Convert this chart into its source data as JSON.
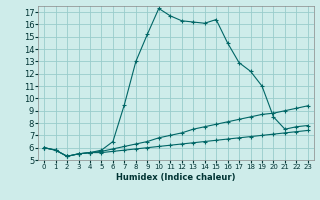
{
  "xlabel": "Humidex (Indice chaleur)",
  "ylabel": "",
  "bg_color": "#ceecea",
  "grid_color": "#99cccc",
  "line_color": "#006666",
  "xlim": [
    -0.5,
    23.5
  ],
  "ylim": [
    5,
    17.5
  ],
  "yticks": [
    5,
    6,
    7,
    8,
    9,
    10,
    11,
    12,
    13,
    14,
    15,
    16,
    17
  ],
  "xticks": [
    0,
    1,
    2,
    3,
    4,
    5,
    6,
    7,
    8,
    9,
    10,
    11,
    12,
    13,
    14,
    15,
    16,
    17,
    18,
    19,
    20,
    21,
    22,
    23
  ],
  "series": [
    {
      "x": [
        0,
        1,
        2,
        3,
        4,
        5,
        6,
        7,
        8,
        9,
        10,
        11,
        12,
        13,
        14,
        15,
        16,
        17,
        18,
        19,
        20,
        21,
        22,
        23
      ],
      "y": [
        6.0,
        5.8,
        5.3,
        5.5,
        5.6,
        5.6,
        5.7,
        5.8,
        5.9,
        6.0,
        6.1,
        6.2,
        6.3,
        6.4,
        6.5,
        6.6,
        6.7,
        6.8,
        6.9,
        7.0,
        7.1,
        7.2,
        7.3,
        7.4
      ]
    },
    {
      "x": [
        0,
        1,
        2,
        3,
        4,
        5,
        6,
        7,
        8,
        9,
        10,
        11,
        12,
        13,
        14,
        15,
        16,
        17,
        18,
        19,
        20,
        21,
        22,
        23
      ],
      "y": [
        6.0,
        5.8,
        5.3,
        5.5,
        5.6,
        5.7,
        5.9,
        6.1,
        6.3,
        6.5,
        6.8,
        7.0,
        7.2,
        7.5,
        7.7,
        7.9,
        8.1,
        8.3,
        8.5,
        8.7,
        8.8,
        9.0,
        9.2,
        9.4
      ]
    },
    {
      "x": [
        0,
        1,
        2,
        3,
        4,
        5,
        6,
        7,
        8,
        9,
        10,
        11,
        12,
        13,
        14,
        15,
        16,
        17,
        18,
        19,
        20,
        21,
        22,
        23
      ],
      "y": [
        6.0,
        5.8,
        5.3,
        5.5,
        5.6,
        5.8,
        6.5,
        9.5,
        13.0,
        15.2,
        17.3,
        16.7,
        16.3,
        16.2,
        16.1,
        16.4,
        14.5,
        12.9,
        12.2,
        11.0,
        8.5,
        7.5,
        7.7,
        7.8
      ]
    }
  ]
}
